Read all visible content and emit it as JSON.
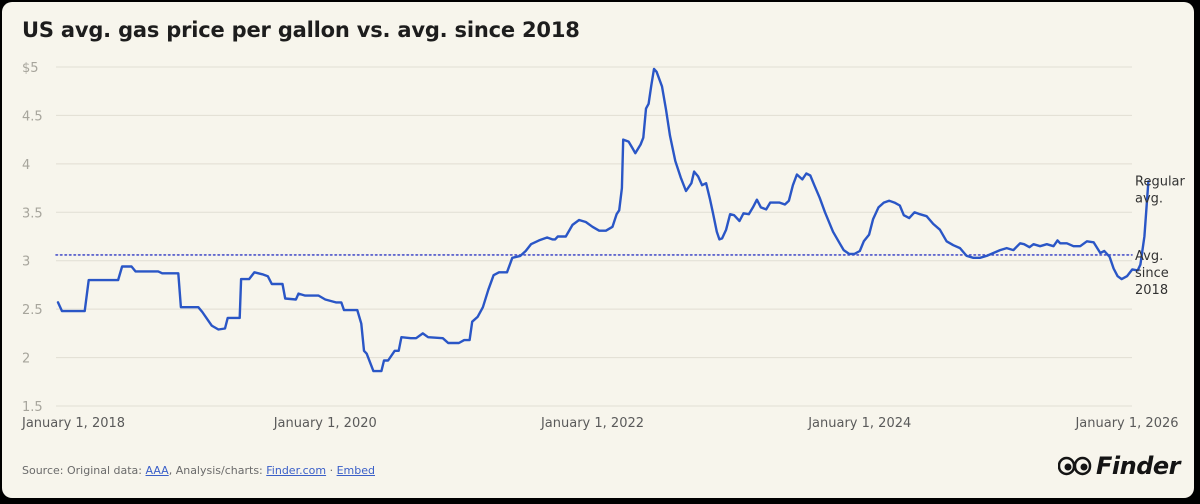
{
  "chart_data": {
    "type": "line",
    "title": "US avg. gas price per gallon vs. avg. since 2018",
    "xlabel": "",
    "ylabel": "",
    "ylim": [
      1.5,
      5
    ],
    "xlim": [
      2018.0,
      2026.0
    ],
    "ytick_labels": [
      "$5",
      "4.5",
      "4",
      "3.5",
      "3",
      "2.5",
      "2",
      "1.5"
    ],
    "ytick_values": [
      5,
      4.5,
      4,
      3.5,
      3,
      2.5,
      2,
      1.5
    ],
    "xtick_labels": [
      "January 1, 2018",
      "January 1, 2020",
      "January 1, 2022",
      "January 1, 2024",
      "January 1, 2026"
    ],
    "xtick_values": [
      2018.0,
      2020.0,
      2022.0,
      2024.0,
      2026.0
    ],
    "grid": true,
    "series": [
      {
        "name": "Regular avg.",
        "label_lines": [
          "Regular",
          "avg."
        ],
        "color": "#2a56c6",
        "points": [
          [
            2018.0,
            2.57
          ],
          [
            2018.03,
            2.48
          ],
          [
            2018.2,
            2.48
          ],
          [
            2018.23,
            2.8
          ],
          [
            2018.45,
            2.8
          ],
          [
            2018.48,
            2.94
          ],
          [
            2018.55,
            2.94
          ],
          [
            2018.58,
            2.89
          ],
          [
            2018.75,
            2.89
          ],
          [
            2018.78,
            2.87
          ],
          [
            2018.9,
            2.87
          ],
          [
            2018.92,
            2.52
          ],
          [
            2019.05,
            2.52
          ],
          [
            2019.08,
            2.47
          ],
          [
            2019.12,
            2.39
          ],
          [
            2019.15,
            2.33
          ],
          [
            2019.2,
            2.29
          ],
          [
            2019.25,
            2.3
          ],
          [
            2019.27,
            2.41
          ],
          [
            2019.36,
            2.41
          ],
          [
            2019.37,
            2.81
          ],
          [
            2019.43,
            2.81
          ],
          [
            2019.47,
            2.88
          ],
          [
            2019.53,
            2.86
          ],
          [
            2019.57,
            2.84
          ],
          [
            2019.6,
            2.76
          ],
          [
            2019.68,
            2.76
          ],
          [
            2019.7,
            2.61
          ],
          [
            2019.78,
            2.6
          ],
          [
            2019.8,
            2.66
          ],
          [
            2019.85,
            2.64
          ],
          [
            2019.95,
            2.64
          ],
          [
            2020.0,
            2.6
          ],
          [
            2020.08,
            2.57
          ],
          [
            2020.12,
            2.57
          ],
          [
            2020.14,
            2.49
          ],
          [
            2020.24,
            2.49
          ],
          [
            2020.27,
            2.35
          ],
          [
            2020.29,
            2.07
          ],
          [
            2020.31,
            2.04
          ],
          [
            2020.36,
            1.86
          ],
          [
            2020.42,
            1.86
          ],
          [
            2020.44,
            1.97
          ],
          [
            2020.47,
            1.97
          ],
          [
            2020.52,
            2.07
          ],
          [
            2020.55,
            2.07
          ],
          [
            2020.57,
            2.21
          ],
          [
            2020.64,
            2.2
          ],
          [
            2020.68,
            2.2
          ],
          [
            2020.73,
            2.25
          ],
          [
            2020.77,
            2.21
          ],
          [
            2020.88,
            2.2
          ],
          [
            2020.92,
            2.15
          ],
          [
            2021.0,
            2.15
          ],
          [
            2021.04,
            2.18
          ],
          [
            2021.08,
            2.18
          ],
          [
            2021.1,
            2.37
          ],
          [
            2021.14,
            2.42
          ],
          [
            2021.18,
            2.52
          ],
          [
            2021.22,
            2.7
          ],
          [
            2021.26,
            2.85
          ],
          [
            2021.3,
            2.88
          ],
          [
            2021.36,
            2.88
          ],
          [
            2021.4,
            3.03
          ],
          [
            2021.46,
            3.05
          ],
          [
            2021.5,
            3.1
          ],
          [
            2021.54,
            3.17
          ],
          [
            2021.6,
            3.21
          ],
          [
            2021.66,
            3.24
          ],
          [
            2021.7,
            3.22
          ],
          [
            2021.72,
            3.22
          ],
          [
            2021.74,
            3.25
          ],
          [
            2021.8,
            3.25
          ],
          [
            2021.85,
            3.37
          ],
          [
            2021.9,
            3.42
          ],
          [
            2021.95,
            3.4
          ],
          [
            2022.0,
            3.35
          ],
          [
            2022.05,
            3.31
          ],
          [
            2022.1,
            3.31
          ],
          [
            2022.15,
            3.35
          ],
          [
            2022.18,
            3.48
          ],
          [
            2022.2,
            3.52
          ],
          [
            2022.22,
            3.75
          ],
          [
            2022.23,
            4.25
          ],
          [
            2022.27,
            4.23
          ],
          [
            2022.3,
            4.16
          ],
          [
            2022.32,
            4.11
          ],
          [
            2022.36,
            4.2
          ],
          [
            2022.38,
            4.27
          ],
          [
            2022.4,
            4.57
          ],
          [
            2022.42,
            4.62
          ],
          [
            2022.44,
            4.81
          ],
          [
            2022.46,
            4.98
          ],
          [
            2022.48,
            4.95
          ],
          [
            2022.52,
            4.8
          ],
          [
            2022.55,
            4.56
          ],
          [
            2022.58,
            4.29
          ],
          [
            2022.62,
            4.03
          ],
          [
            2022.66,
            3.86
          ],
          [
            2022.7,
            3.72
          ],
          [
            2022.74,
            3.8
          ],
          [
            2022.76,
            3.92
          ],
          [
            2022.79,
            3.87
          ],
          [
            2022.82,
            3.78
          ],
          [
            2022.85,
            3.8
          ],
          [
            2022.88,
            3.63
          ],
          [
            2022.9,
            3.5
          ],
          [
            2022.93,
            3.3
          ],
          [
            2022.95,
            3.22
          ],
          [
            2022.97,
            3.23
          ],
          [
            2023.0,
            3.32
          ],
          [
            2023.03,
            3.48
          ],
          [
            2023.06,
            3.47
          ],
          [
            2023.1,
            3.41
          ],
          [
            2023.13,
            3.49
          ],
          [
            2023.17,
            3.48
          ],
          [
            2023.2,
            3.55
          ],
          [
            2023.23,
            3.63
          ],
          [
            2023.26,
            3.55
          ],
          [
            2023.3,
            3.53
          ],
          [
            2023.33,
            3.6
          ],
          [
            2023.4,
            3.6
          ],
          [
            2023.44,
            3.58
          ],
          [
            2023.47,
            3.62
          ],
          [
            2023.5,
            3.78
          ],
          [
            2023.53,
            3.89
          ],
          [
            2023.57,
            3.84
          ],
          [
            2023.6,
            3.9
          ],
          [
            2023.63,
            3.88
          ],
          [
            2023.66,
            3.78
          ],
          [
            2023.7,
            3.65
          ],
          [
            2023.74,
            3.5
          ],
          [
            2023.8,
            3.3
          ],
          [
            2023.85,
            3.18
          ],
          [
            2023.88,
            3.11
          ],
          [
            2023.92,
            3.07
          ],
          [
            2023.96,
            3.07
          ],
          [
            2024.0,
            3.1
          ],
          [
            2024.03,
            3.2
          ],
          [
            2024.07,
            3.27
          ],
          [
            2024.1,
            3.43
          ],
          [
            2024.14,
            3.55
          ],
          [
            2024.18,
            3.6
          ],
          [
            2024.22,
            3.62
          ],
          [
            2024.26,
            3.6
          ],
          [
            2024.3,
            3.57
          ],
          [
            2024.33,
            3.47
          ],
          [
            2024.37,
            3.44
          ],
          [
            2024.41,
            3.5
          ],
          [
            2024.45,
            3.48
          ],
          [
            2024.5,
            3.46
          ],
          [
            2024.55,
            3.38
          ],
          [
            2024.6,
            3.32
          ],
          [
            2024.65,
            3.2
          ],
          [
            2024.7,
            3.16
          ],
          [
            2024.75,
            3.13
          ],
          [
            2024.8,
            3.05
          ],
          [
            2024.85,
            3.03
          ],
          [
            2024.9,
            3.03
          ],
          [
            2024.95,
            3.05
          ],
          [
            2025.0,
            3.08
          ],
          [
            2025.05,
            3.11
          ],
          [
            2025.1,
            3.13
          ],
          [
            2025.15,
            3.11
          ],
          [
            2025.2,
            3.18
          ],
          [
            2025.23,
            3.17
          ],
          [
            2025.27,
            3.14
          ],
          [
            2025.3,
            3.17
          ],
          [
            2025.35,
            3.15
          ],
          [
            2025.4,
            3.17
          ],
          [
            2025.45,
            3.15
          ],
          [
            2025.48,
            3.21
          ],
          [
            2025.5,
            3.18
          ],
          [
            2025.55,
            3.18
          ],
          [
            2025.6,
            3.15
          ],
          [
            2025.65,
            3.15
          ],
          [
            2025.7,
            3.2
          ],
          [
            2025.75,
            3.19
          ],
          [
            2025.8,
            3.08
          ],
          [
            2025.83,
            3.1
          ],
          [
            2025.87,
            3.04
          ],
          [
            2025.9,
            2.92
          ],
          [
            2025.93,
            2.84
          ],
          [
            2025.96,
            2.81
          ],
          [
            2026.0,
            2.84
          ],
          [
            2026.04,
            2.91
          ],
          [
            2026.08,
            2.9
          ],
          [
            2026.1,
            2.96
          ],
          [
            2026.13,
            3.25
          ],
          [
            2026.16,
            3.82
          ]
        ]
      },
      {
        "name": "Avg. since 2018",
        "label_lines": [
          "Avg.",
          "since",
          "2018"
        ],
        "color": "#4b53c9",
        "value": 3.06
      }
    ]
  },
  "footer": {
    "source_prefix": "Source: Original data: ",
    "aaa": "AAA",
    "analysis": ", Analysis/charts: ",
    "finder_link": "Finder.com",
    "separator": " · ",
    "embed": "Embed"
  },
  "logo": {
    "text": "Finder"
  }
}
